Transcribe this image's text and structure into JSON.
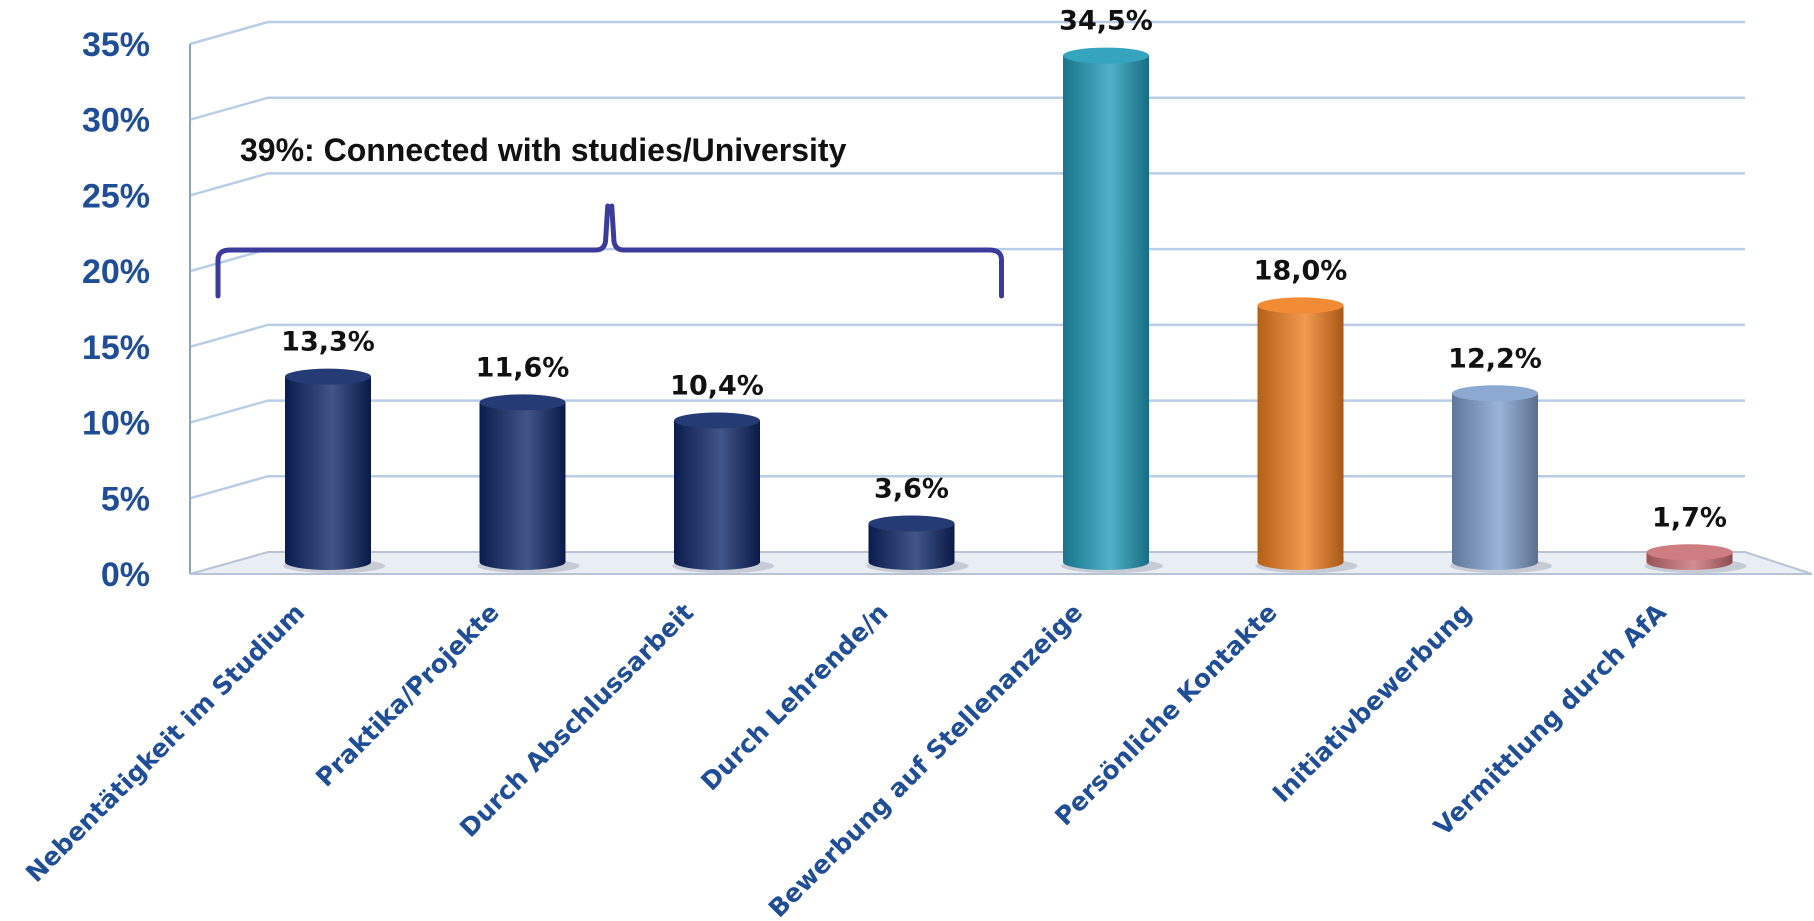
{
  "chart_data": {
    "type": "bar",
    "categories": [
      "Nebentätigkeit im Studium",
      "Praktika/Projekte",
      "Durch Abschlussarbeit",
      "Durch Lehrende/n",
      "Bewerbung auf Stellenanzeige",
      "Persönliche Kontakte",
      "Initiativbewerbung",
      "Vermittlung durch AfA"
    ],
    "values": [
      13.3,
      11.6,
      10.4,
      3.6,
      34.5,
      18.0,
      12.2,
      1.7
    ],
    "data_labels": [
      "13,3%",
      "11,6%",
      "10,4%",
      "3,6%",
      "34,5%",
      "18,0%",
      "12,2%",
      "1,7%"
    ],
    "bar_colors": [
      "#0d2566",
      "#0d2566",
      "#0d2566",
      "#0d2566",
      "#1e9bb8",
      "#f07e1e",
      "#7f9fcc",
      "#c86e75"
    ],
    "ylim": [
      0,
      35
    ],
    "yticks": [
      0,
      5,
      10,
      15,
      20,
      25,
      30,
      35
    ],
    "ytick_labels": [
      "0%",
      "5%",
      "10%",
      "15%",
      "20%",
      "25%",
      "30%",
      "35%"
    ],
    "grid": true,
    "annotation": {
      "text": "39%: Connected with studies/University",
      "spans_categories": [
        0,
        3
      ],
      "bracket_color": "#3b3b9b"
    },
    "title": "",
    "xlabel": "",
    "ylabel": ""
  }
}
